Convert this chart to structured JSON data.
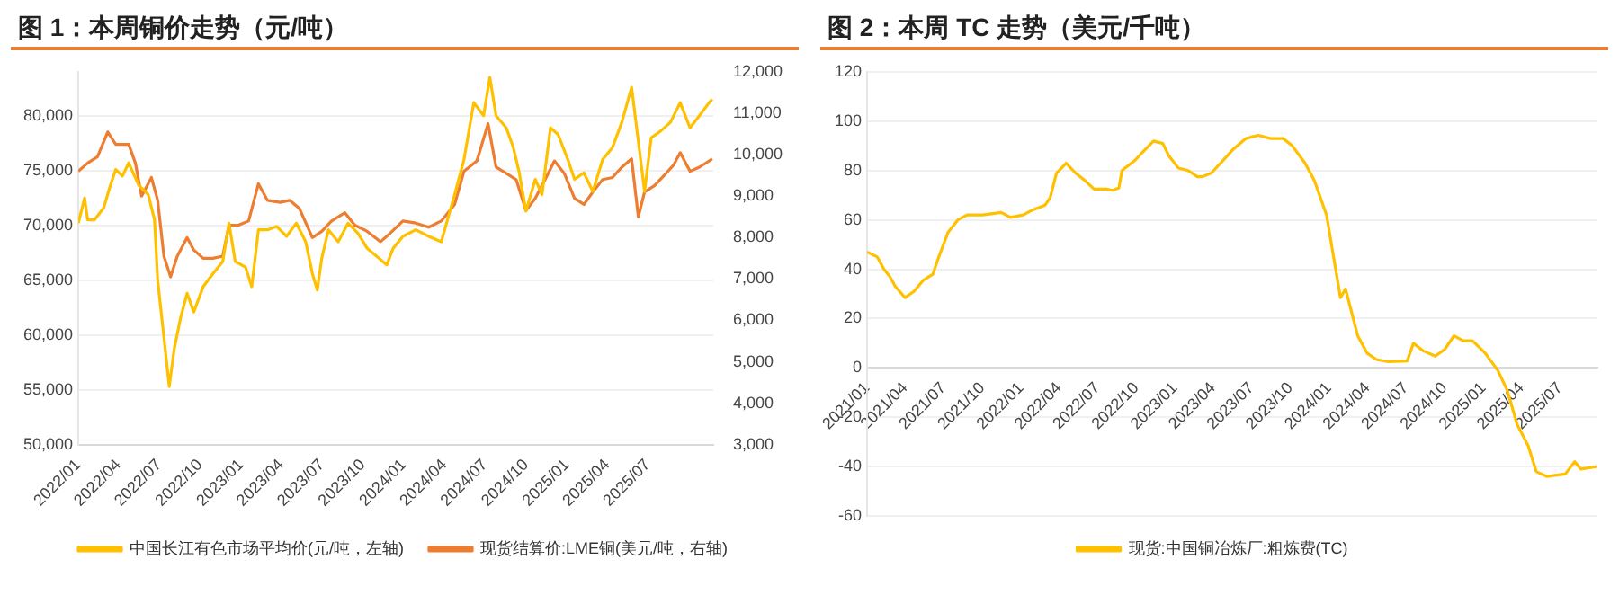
{
  "chart_data": [
    {
      "type": "line",
      "title": "图 1：本周铜价走势（元/吨）",
      "legend": "bottom",
      "grid": "y",
      "marker": "none",
      "line_style": "solid",
      "xlim": [
        "2022-01-01",
        "2025-11-25"
      ],
      "xticks": [
        {
          "value": "2022-01",
          "label": "2022/01"
        },
        {
          "value": "2022-04",
          "label": "2022/04"
        },
        {
          "value": "2022-07",
          "label": "2022/07"
        },
        {
          "value": "2022-10",
          "label": "2022/10"
        },
        {
          "value": "2023-01",
          "label": "2023/01"
        },
        {
          "value": "2023-04",
          "label": "2023/04"
        },
        {
          "value": "2023-07",
          "label": "2023/07"
        },
        {
          "value": "2023-10",
          "label": "2023/10"
        },
        {
          "value": "2024-01",
          "label": "2024/01"
        },
        {
          "value": "2024-04",
          "label": "2024/04"
        },
        {
          "value": "2024-07",
          "label": "2024/07"
        },
        {
          "value": "2024-10",
          "label": "2024/10"
        },
        {
          "value": "2025-01",
          "label": "2025/01"
        },
        {
          "value": "2025-04",
          "label": "2025/04"
        },
        {
          "value": "2025-07",
          "label": "2025/07"
        }
      ],
      "ylim": [
        50000,
        84000
      ],
      "yticks": [
        {
          "value": 50000,
          "label": "50,000"
        },
        {
          "value": 55000,
          "label": "55,000"
        },
        {
          "value": 60000,
          "label": "60,000"
        },
        {
          "value": 65000,
          "label": "65,000"
        },
        {
          "value": 70000,
          "label": "70,000"
        },
        {
          "value": 75000,
          "label": "75,000"
        },
        {
          "value": 80000,
          "label": "80,000"
        }
      ],
      "y2lim": [
        3000,
        12000
      ],
      "y2ticks": [
        {
          "value": 3000,
          "label": "3,000"
        },
        {
          "value": 4000,
          "label": "4,000"
        },
        {
          "value": 5000,
          "label": "5,000"
        },
        {
          "value": 6000,
          "label": "6,000"
        },
        {
          "value": 7000,
          "label": "7,000"
        },
        {
          "value": 8000,
          "label": "8,000"
        },
        {
          "value": 9000,
          "label": "9,000"
        },
        {
          "value": 10000,
          "label": "10,000"
        },
        {
          "value": 11000,
          "label": "11,000"
        },
        {
          "value": 12000,
          "label": "12,000"
        }
      ],
      "series": [
        {
          "name": "中国长江有色市场平均价(元/吨，左轴)",
          "color": "#ffc000",
          "x": [
            "2022-01-01",
            "2022-01-15",
            "2022-01-22",
            "2022-02-06",
            "2022-02-27",
            "2022-03-12",
            "2022-03-26",
            "2022-04-10",
            "2022-04-24",
            "2022-05-16",
            "2022-06-07",
            "2022-06-21",
            "2022-06-28",
            "2022-07-12",
            "2022-07-24",
            "2022-08-04",
            "2022-08-18",
            "2022-09-02",
            "2022-09-17",
            "2022-10-08",
            "2022-10-30",
            "2022-11-21",
            "2022-12-05",
            "2022-12-19",
            "2023-01-11",
            "2023-01-25",
            "2023-02-09",
            "2023-03-01",
            "2023-03-22",
            "2023-04-13",
            "2023-05-05",
            "2023-05-26",
            "2023-06-10",
            "2023-06-21",
            "2023-07-01",
            "2023-07-16",
            "2023-08-07",
            "2023-08-29",
            "2023-09-20",
            "2023-10-11",
            "2023-11-24",
            "2023-12-08",
            "2023-12-30",
            "2024-01-28",
            "2024-02-26",
            "2024-03-25",
            "2024-04-24",
            "2024-05-15",
            "2024-06-06",
            "2024-06-28",
            "2024-07-12",
            "2024-07-26",
            "2024-08-18",
            "2024-09-02",
            "2024-09-16",
            "2024-10-01",
            "2024-10-22",
            "2024-11-06",
            "2024-11-25",
            "2024-12-12",
            "2025-01-03",
            "2025-01-18",
            "2025-02-08",
            "2025-02-28",
            "2025-03-22",
            "2025-04-13",
            "2025-05-04",
            "2025-05-26",
            "2025-06-10",
            "2025-06-24",
            "2025-07-09",
            "2025-07-30",
            "2025-08-21",
            "2025-09-12",
            "2025-10-04",
            "2025-10-25",
            "2025-11-16",
            "2025-11-23"
          ],
          "values": [
            70200,
            72500,
            70500,
            70500,
            71600,
            73400,
            75100,
            74500,
            75700,
            73700,
            72800,
            70500,
            65000,
            59800,
            55300,
            58700,
            61500,
            63800,
            62100,
            64400,
            65600,
            66700,
            70200,
            66700,
            66200,
            64400,
            69600,
            69600,
            69900,
            69000,
            70200,
            68500,
            65600,
            64100,
            67000,
            69600,
            68500,
            70200,
            69300,
            67900,
            66400,
            67900,
            69000,
            69600,
            69000,
            68500,
            72800,
            76000,
            81200,
            80000,
            83500,
            80000,
            78900,
            77200,
            74800,
            71300,
            74200,
            72800,
            78900,
            78300,
            76000,
            74200,
            74800,
            73100,
            76000,
            77100,
            79400,
            82600,
            77700,
            73100,
            78000,
            78600,
            79400,
            81200,
            78900,
            80000,
            81200,
            81500
          ]
        },
        {
          "name": "现货结算价:LME铜(美元/吨，右轴)",
          "color": "#ed7d31",
          "axis": "y2",
          "x": [
            "2022-01-01",
            "2022-01-22",
            "2022-02-13",
            "2022-03-08",
            "2022-03-26",
            "2022-04-24",
            "2022-05-09",
            "2022-05-23",
            "2022-06-14",
            "2022-06-28",
            "2022-07-12",
            "2022-07-27",
            "2022-08-11",
            "2022-09-02",
            "2022-09-17",
            "2022-10-08",
            "2022-10-30",
            "2022-11-21",
            "2022-12-05",
            "2022-12-26",
            "2023-01-18",
            "2023-02-09",
            "2023-03-01",
            "2023-03-30",
            "2023-04-20",
            "2023-05-12",
            "2023-06-10",
            "2023-07-01",
            "2023-07-23",
            "2023-08-22",
            "2023-09-13",
            "2023-10-11",
            "2023-11-10",
            "2023-12-01",
            "2023-12-30",
            "2024-01-28",
            "2024-02-26",
            "2024-03-25",
            "2024-04-24",
            "2024-05-15",
            "2024-06-13",
            "2024-07-08",
            "2024-07-26",
            "2024-08-18",
            "2024-09-09",
            "2024-10-01",
            "2024-10-22",
            "2024-11-13",
            "2024-12-04",
            "2024-12-26",
            "2025-01-18",
            "2025-02-08",
            "2025-02-28",
            "2025-03-22",
            "2025-04-13",
            "2025-05-04",
            "2025-05-26",
            "2025-06-10",
            "2025-06-24",
            "2025-07-16",
            "2025-08-07",
            "2025-08-28",
            "2025-09-12",
            "2025-10-04",
            "2025-10-25",
            "2025-11-23"
          ],
          "values": [
            9600,
            9800,
            9950,
            10550,
            10250,
            10250,
            9800,
            9000,
            9450,
            8900,
            7550,
            7050,
            7550,
            8000,
            7700,
            7500,
            7500,
            7550,
            8300,
            8300,
            8400,
            9300,
            8900,
            8850,
            8900,
            8700,
            8000,
            8150,
            8400,
            8600,
            8300,
            8150,
            7900,
            8100,
            8400,
            8350,
            8250,
            8400,
            8800,
            9600,
            9850,
            10750,
            9700,
            9550,
            9400,
            8650,
            8950,
            9400,
            9850,
            9550,
            8950,
            8800,
            9100,
            9400,
            9450,
            9700,
            9900,
            8500,
            9100,
            9250,
            9500,
            9750,
            10050,
            9600,
            9700,
            9900
          ]
        }
      ]
    },
    {
      "type": "line",
      "title": "图 2：本周 TC 走势（美元/千吨）",
      "legend": "bottom",
      "grid": "y",
      "marker": "none",
      "line_style": "solid",
      "xlim": [
        "2021-01-01",
        "2025-09-28"
      ],
      "xticks": [
        {
          "value": "2021-01",
          "label": "2021/01"
        },
        {
          "value": "2021-04",
          "label": "2021/04"
        },
        {
          "value": "2021-07",
          "label": "2021/07"
        },
        {
          "value": "2021-10",
          "label": "2021/10"
        },
        {
          "value": "2022-01",
          "label": "2022/01"
        },
        {
          "value": "2022-04",
          "label": "2022/04"
        },
        {
          "value": "2022-07",
          "label": "2022/07"
        },
        {
          "value": "2022-10",
          "label": "2022/10"
        },
        {
          "value": "2023-01",
          "label": "2023/01"
        },
        {
          "value": "2023-04",
          "label": "2023/04"
        },
        {
          "value": "2023-07",
          "label": "2023/07"
        },
        {
          "value": "2023-10",
          "label": "2023/10"
        },
        {
          "value": "2024-01",
          "label": "2024/01"
        },
        {
          "value": "2024-04",
          "label": "2024/04"
        },
        {
          "value": "2024-07",
          "label": "2024/07"
        },
        {
          "value": "2024-10",
          "label": "2024/10"
        },
        {
          "value": "2025-01",
          "label": "2025/01"
        },
        {
          "value": "2025-04",
          "label": "2025/04"
        },
        {
          "value": "2025-07",
          "label": "2025/07"
        }
      ],
      "ylim": [
        -60,
        120
      ],
      "yticks": [
        -60,
        -40,
        -20,
        0,
        20,
        40,
        60,
        80,
        100,
        120
      ],
      "series": [
        {
          "name": "现货:中国铜冶炼厂:粗炼费(TC)",
          "color": "#ffc000",
          "x": [
            "2021-01-01",
            "2021-01-25",
            "2021-02-10",
            "2021-02-24",
            "2021-03-09",
            "2021-04-01",
            "2021-04-22",
            "2021-05-14",
            "2021-06-06",
            "2021-06-20",
            "2021-07-12",
            "2021-08-04",
            "2021-08-26",
            "2021-10-02",
            "2021-11-15",
            "2021-12-07",
            "2022-01-06",
            "2022-01-28",
            "2022-02-27",
            "2022-03-11",
            "2022-03-26",
            "2022-04-18",
            "2022-05-10",
            "2022-06-01",
            "2022-06-23",
            "2022-07-22",
            "2022-08-06",
            "2022-08-21",
            "2022-08-28",
            "2022-09-27",
            "2022-10-19",
            "2022-11-11",
            "2022-12-03",
            "2022-12-17",
            "2023-01-09",
            "2023-02-01",
            "2023-02-23",
            "2023-03-07",
            "2023-03-28",
            "2023-04-27",
            "2023-05-19",
            "2023-06-18",
            "2023-07-17",
            "2023-08-16",
            "2023-09-14",
            "2023-10-06",
            "2023-11-05",
            "2023-11-27",
            "2023-12-26",
            "2024-01-10",
            "2024-01-28",
            "2024-02-09",
            "2024-03-09",
            "2024-03-31",
            "2024-04-22",
            "2024-05-21",
            "2024-07-04",
            "2024-07-19",
            "2024-08-10",
            "2024-09-09",
            "2024-10-01",
            "2024-10-23",
            "2024-11-14",
            "2024-12-06",
            "2025-01-05",
            "2025-02-04",
            "2025-02-26",
            "2025-03-22",
            "2025-04-17",
            "2025-05-06",
            "2025-05-31",
            "2025-07-14",
            "2025-08-05",
            "2025-08-20",
            "2025-09-26"
          ],
          "values": [
            47,
            45,
            40,
            37,
            33,
            28.5,
            31,
            35.5,
            38,
            45,
            55,
            60,
            62,
            62,
            63,
            61,
            62,
            64,
            66,
            69,
            79,
            83,
            79,
            76,
            72.5,
            72.5,
            72,
            73,
            80,
            84,
            88,
            92,
            91,
            86,
            81,
            80,
            77.5,
            77.5,
            79,
            84.5,
            88.7,
            93,
            94.3,
            93,
            93,
            90,
            83,
            76,
            62,
            46.7,
            28.5,
            32,
            13,
            6,
            3.4,
            2.5,
            2.8,
            10,
            7,
            4.8,
            7.5,
            13,
            11,
            11,
            6,
            -1,
            -9,
            -23,
            -31.6,
            -42,
            -44,
            -43,
            -38,
            -41,
            -40
          ]
        }
      ]
    }
  ]
}
